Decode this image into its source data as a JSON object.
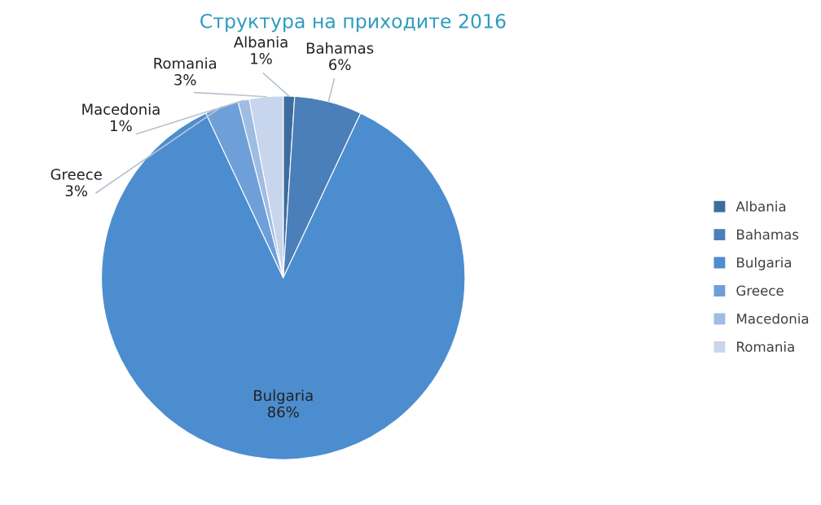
{
  "chart_data": {
    "type": "pie",
    "title": "Структура на приходите 2016",
    "categories": [
      "Albania",
      "Bahamas",
      "Bulgaria",
      "Greece",
      "Macedonia",
      "Romania"
    ],
    "values": [
      1,
      6,
      86,
      3,
      1,
      3
    ],
    "value_labels": [
      "1%",
      "6%",
      "86%",
      "3%",
      "1%",
      "3%"
    ],
    "colors": [
      "#3d6d9f",
      "#4b7fb9",
      "#4c8dcf",
      "#6f9fd8",
      "#9fbce3",
      "#c7d6ec"
    ],
    "legend": "right"
  }
}
